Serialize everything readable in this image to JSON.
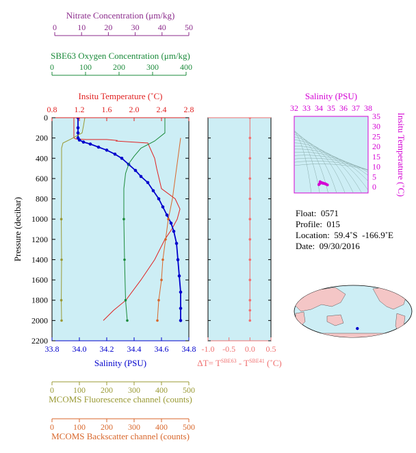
{
  "colors": {
    "nitrate": "#8b2a8b",
    "oxygen": "#1a8a3a",
    "temperature": "#e02020",
    "salinity": "#0000cc",
    "fluorescence": "#999933",
    "backscatter": "#d8662a",
    "delta": "#f07070",
    "ts": "#d400d4",
    "panel_bg": "#cdeef5",
    "land": "#f4c6c6",
    "ocean": "#cdeef5"
  },
  "axes": {
    "nitrate": {
      "title": "Nitrate Concentration (μm/kg)",
      "ticks": [
        "0",
        "10",
        "20",
        "30",
        "40",
        "50"
      ]
    },
    "oxygen": {
      "title": "SBE63 Oxygen Concentration (μm/kg)",
      "ticks": [
        "0",
        "100",
        "200",
        "300",
        "400"
      ]
    },
    "temperature": {
      "title": "Insitu Temperature (˚C)",
      "ticks": [
        "0.8",
        "1.2",
        "1.6",
        "2.0",
        "2.4",
        "2.8"
      ]
    },
    "pressure": {
      "title": "Pressure (decibar)",
      "ticks": [
        "0",
        "200",
        "400",
        "600",
        "800",
        "1000",
        "1200",
        "1400",
        "1600",
        "1800",
        "2000",
        "2200"
      ]
    },
    "salinity": {
      "title": "Salinity (PSU)",
      "ticks": [
        "33.8",
        "34.0",
        "34.2",
        "34.4",
        "34.6",
        "34.8"
      ]
    },
    "delta": {
      "title_prefix": "ΔT= T",
      "sup1": "SBE63",
      "mid": " - T",
      "sup2": "SBE41",
      "unit": " (˚C)",
      "ticks": [
        "-1.0",
        "-0.5",
        "0.0",
        "0.5"
      ]
    },
    "fluorescence": {
      "title": "MCOMS Fluorescence channel (counts)",
      "ticks": [
        "0",
        "100",
        "200",
        "300",
        "400",
        "500"
      ]
    },
    "backscatter": {
      "title": "MCOMS Backscatter channel (counts)",
      "ticks": [
        "0",
        "100",
        "200",
        "300",
        "400",
        "500"
      ]
    },
    "ts_salinity": {
      "title": "Salinity (PSU)",
      "ticks": [
        "32",
        "33",
        "34",
        "35",
        "36",
        "37",
        "38"
      ]
    },
    "ts_temperature": {
      "title": "Insitu Temperature (˚C)",
      "ticks": [
        "0",
        "5",
        "10",
        "15",
        "20",
        "25",
        "30",
        "35"
      ]
    }
  },
  "info": {
    "float": "Float:  0571",
    "profile": "Profile:  015",
    "location": "Location:  59.4˚S  -166.9˚E",
    "date": "Date:  09/30/2016"
  },
  "chart_data": {
    "type": "line",
    "y_axis": "pressure",
    "ylim": [
      2200,
      0
    ],
    "series": [
      {
        "name": "Insitu Temperature",
        "axis": "temperature",
        "range": [
          0.8,
          2.8
        ],
        "x": [
          1.12,
          1.12,
          1.12,
          1.15,
          1.3,
          1.6,
          1.75,
          1.74,
          2.2,
          2.3,
          2.33,
          2.4,
          2.6,
          2.67,
          2.63,
          2.55,
          2.45,
          2.3,
          2.1,
          1.88,
          1.7,
          1.55
        ],
        "y": [
          0,
          100,
          200,
          210,
          215,
          215,
          225,
          230,
          250,
          400,
          500,
          700,
          800,
          900,
          1000,
          1100,
          1200,
          1400,
          1600,
          1800,
          1900,
          2000
        ]
      },
      {
        "name": "Salinity",
        "axis": "salinity",
        "range": [
          33.8,
          34.8
        ],
        "x": [
          33.99,
          33.99,
          33.99,
          33.99,
          34.0,
          34.03,
          34.08,
          34.14,
          34.2,
          34.26,
          34.31,
          34.36,
          34.41,
          34.45,
          34.5,
          34.54,
          34.58,
          34.61,
          34.64,
          34.67,
          34.69,
          34.71,
          34.72,
          34.73,
          34.74,
          34.74,
          34.74
        ],
        "y": [
          0,
          100,
          150,
          200,
          220,
          240,
          260,
          290,
          320,
          360,
          400,
          460,
          520,
          580,
          640,
          720,
          800,
          880,
          960,
          1040,
          1120,
          1240,
          1400,
          1560,
          1720,
          1880,
          2000
        ]
      },
      {
        "name": "Oxygen",
        "axis": "oxygen",
        "range": [
          0,
          400
        ],
        "x": [
          330,
          330,
          330,
          300,
          260,
          240,
          225,
          215,
          210,
          210,
          210,
          212,
          215,
          220
        ],
        "y": [
          0,
          100,
          150,
          230,
          300,
          380,
          450,
          550,
          700,
          900,
          1000,
          1400,
          1800,
          2000
        ]
      },
      {
        "name": "Fluorescence",
        "axis": "fluorescence",
        "range": [
          0,
          500
        ],
        "x": [
          120,
          115,
          110,
          70,
          40,
          35,
          35,
          34,
          35,
          34,
          35
        ],
        "y": [
          0,
          80,
          150,
          210,
          250,
          300,
          500,
          1000,
          1400,
          1800,
          2000
        ]
      },
      {
        "name": "Backscatter",
        "axis": "backscatter",
        "range": [
          0,
          500
        ],
        "x": [
          470,
          460,
          450,
          440,
          425,
          415,
          405,
          400,
          390,
          385
        ],
        "y": [
          200,
          400,
          600,
          800,
          1000,
          1200,
          1400,
          1600,
          1800,
          2000
        ]
      },
      {
        "name": "Delta T",
        "axis": "delta",
        "range": [
          -1.0,
          0.5
        ],
        "x": [
          0,
          0,
          0,
          0,
          0,
          0,
          0,
          0,
          0,
          0,
          0,
          0
        ],
        "y": [
          0,
          200,
          400,
          600,
          800,
          1000,
          1200,
          1400,
          1600,
          1800,
          1900,
          2000
        ]
      }
    ],
    "ts": {
      "xlim": [
        32,
        38
      ],
      "ylim": [
        -3,
        35
      ],
      "points": [
        [
          34.1,
          2.6
        ],
        [
          34.2,
          2.2
        ],
        [
          34.3,
          2.0
        ],
        [
          34.4,
          1.8
        ],
        [
          34.5,
          1.6
        ],
        [
          34.6,
          1.3
        ],
        [
          34.7,
          1.0
        ],
        [
          34.15,
          1.9
        ],
        [
          34.35,
          1.7
        ],
        [
          34.55,
          1.4
        ],
        [
          34.0,
          1.1
        ],
        [
          34.05,
          1.5
        ]
      ]
    },
    "map": {
      "float_lat": -59.4,
      "float_lon": -166.9
    }
  }
}
